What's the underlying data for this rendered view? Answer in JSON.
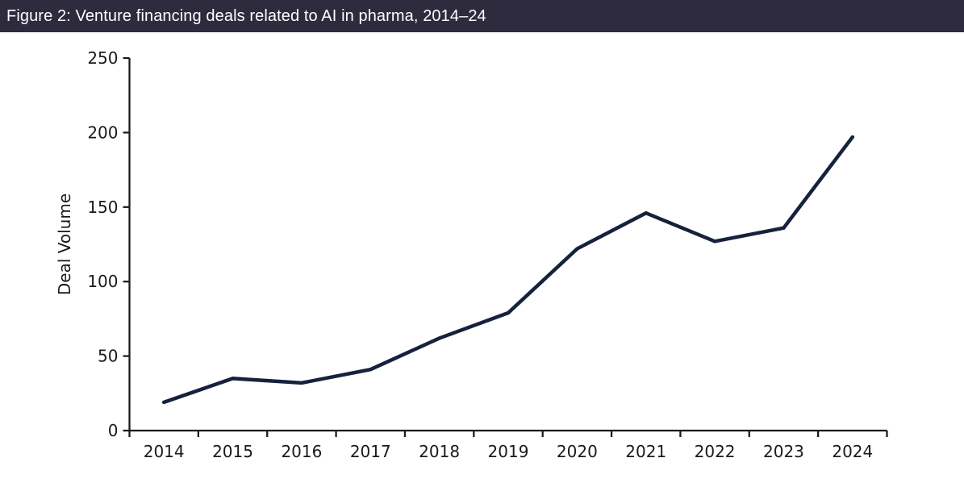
{
  "header": {
    "title": "Figure 2: Venture financing deals related to AI in pharma, 2014–24",
    "bg_color": "#2E2B3E",
    "text_color": "#FFFFFF"
  },
  "chart_data": {
    "type": "line",
    "title": "Figure 2: Venture financing deals related to AI in pharma, 2014–24",
    "categories": [
      "2014",
      "2015",
      "2016",
      "2017",
      "2018",
      "2019",
      "2020",
      "2021",
      "2022",
      "2023",
      "2024"
    ],
    "series": [
      {
        "name": "Deal Volume",
        "values": [
          19,
          35,
          32,
          41,
          62,
          79,
          122,
          146,
          127,
          136,
          197
        ]
      }
    ],
    "xlabel": "",
    "ylabel": "Deal Volume",
    "ylim": [
      0,
      250
    ],
    "yticks": [
      0,
      50,
      100,
      150,
      200,
      250
    ],
    "grid": false,
    "legend": "none",
    "line_color": "#16213E",
    "axis_color": "#1A1A1A",
    "label_color": "#1A1A1A"
  }
}
